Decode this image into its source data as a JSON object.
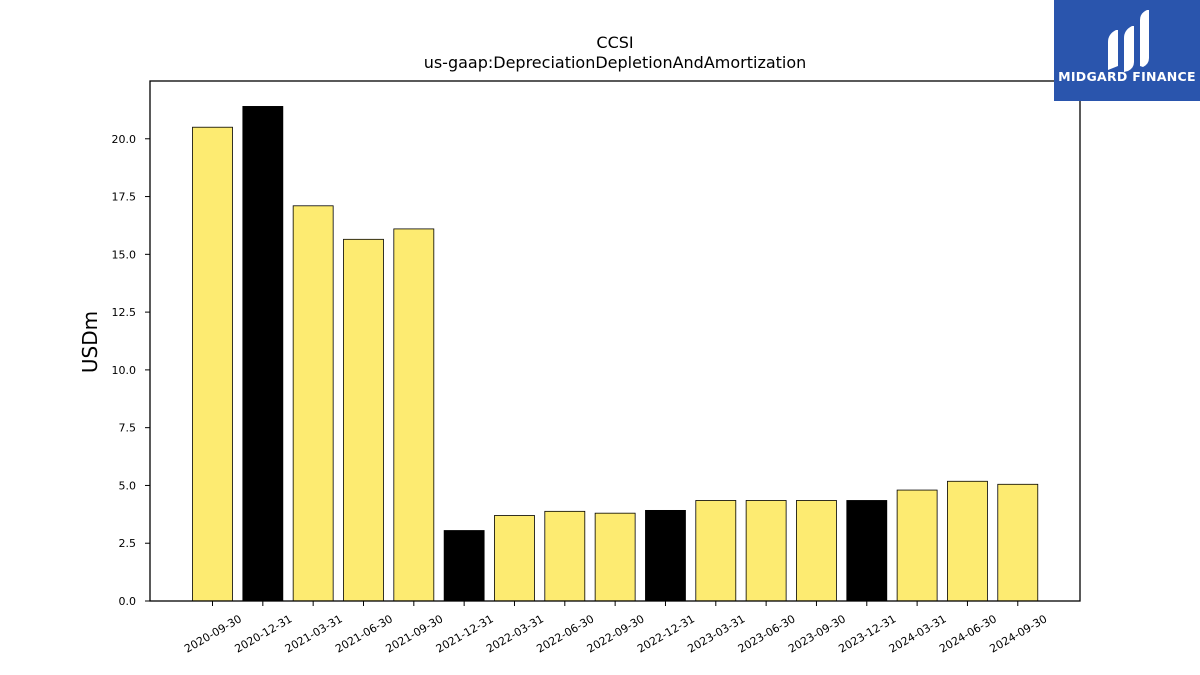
{
  "branding": {
    "logo_text": "MIDGARD FINANCE",
    "logo_bg": "#2a55ad"
  },
  "chart_data": {
    "type": "bar",
    "title": "CCSI",
    "subtitle": "us-gaap:DepreciationDepletionAndAmortization",
    "xlabel": "",
    "ylabel": "USDm",
    "ylim": [
      0,
      22.5
    ],
    "yticks": [
      "0.0",
      "2.5",
      "5.0",
      "7.5",
      "10.0",
      "12.5",
      "15.0",
      "17.5",
      "20.0"
    ],
    "grid": false,
    "legend": "none",
    "colors": {
      "quarter": "#fdeb71",
      "year_end": "#000000",
      "edge": "#000000"
    },
    "categories": [
      "2020-09-30",
      "2020-12-31",
      "2021-03-31",
      "2021-06-30",
      "2021-09-30",
      "2021-12-31",
      "2022-03-31",
      "2022-06-30",
      "2022-09-30",
      "2022-12-31",
      "2023-03-31",
      "2023-06-30",
      "2023-09-30",
      "2023-12-31",
      "2024-03-31",
      "2024-06-30",
      "2024-09-30"
    ],
    "values": [
      20.5,
      21.4,
      17.1,
      15.65,
      16.1,
      3.05,
      3.7,
      3.88,
      3.8,
      3.92,
      4.35,
      4.35,
      4.35,
      4.35,
      4.8,
      5.18,
      5.05
    ],
    "year_end": [
      false,
      true,
      false,
      false,
      false,
      true,
      false,
      false,
      false,
      true,
      false,
      false,
      false,
      true,
      false,
      false,
      false
    ]
  }
}
